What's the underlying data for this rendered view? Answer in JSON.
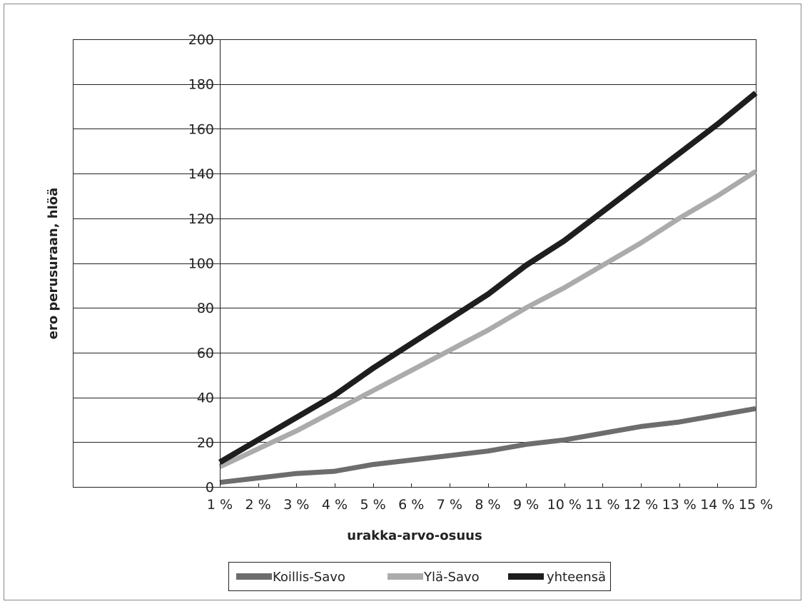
{
  "chart_data": {
    "type": "line",
    "title": "",
    "xlabel": "urakka-arvo-osuus",
    "ylabel": "ero perusuraan, hlöä",
    "categories": [
      "1 %",
      "2 %",
      "3 %",
      "4 %",
      "5 %",
      "6 %",
      "7 %",
      "8 %",
      "9 %",
      "10 %",
      "11 %",
      "12 %",
      "13 %",
      "14 %",
      "15 %"
    ],
    "ylim": [
      0,
      200
    ],
    "yticks": [
      "0",
      "20",
      "40",
      "60",
      "80",
      "100",
      "120",
      "140",
      "160",
      "180",
      "200"
    ],
    "grid": "horizontal",
    "legend_position": "bottom",
    "series": [
      {
        "name": "Koillis-Savo",
        "color": "#6d6d6d",
        "values": [
          2,
          4,
          6,
          7,
          10,
          12,
          14,
          16,
          19,
          21,
          24,
          27,
          29,
          32,
          35
        ]
      },
      {
        "name": "Ylä-Savo",
        "color": "#ababab",
        "values": [
          9,
          17,
          25,
          34,
          43,
          52,
          61,
          70,
          80,
          89,
          99,
          109,
          120,
          130,
          141
        ]
      },
      {
        "name": "yhteensä",
        "color": "#1e1e1e",
        "values": [
          11,
          21,
          31,
          41,
          53,
          64,
          75,
          86,
          99,
          110,
          123,
          136,
          149,
          162,
          176
        ]
      }
    ]
  }
}
